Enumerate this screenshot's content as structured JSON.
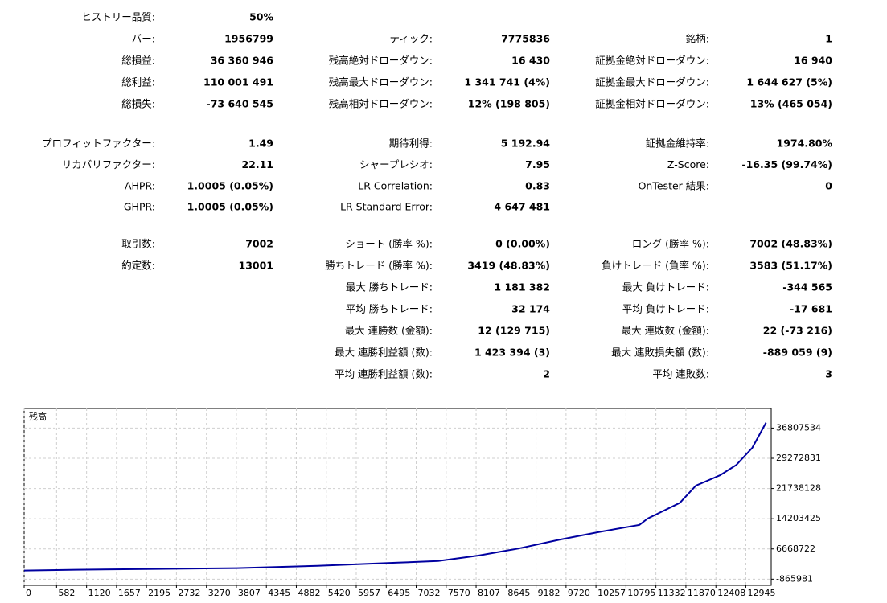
{
  "report": {
    "sections": [
      {
        "rows": [
          [
            [
              "ヒストリー品質:",
              "50%"
            ],
            null,
            null
          ],
          [
            [
              "バー:",
              "1956799"
            ],
            [
              "ティック:",
              "7775836"
            ],
            [
              "銘柄:",
              "1"
            ]
          ],
          [
            [
              "総損益:",
              "36 360 946"
            ],
            [
              "残高絶対ドローダウン:",
              "16 430"
            ],
            [
              "証拠金絶対ドローダウン:",
              "16 940"
            ]
          ],
          [
            [
              "総利益:",
              "110 001 491"
            ],
            [
              "残高最大ドローダウン:",
              "1 341 741 (4%)"
            ],
            [
              "証拠金最大ドローダウン:",
              "1 644 627 (5%)"
            ]
          ],
          [
            [
              "総損失:",
              "-73 640 545"
            ],
            [
              "残高相対ドローダウン:",
              "12% (198 805)"
            ],
            [
              "証拠金相対ドローダウン:",
              "13% (465 054)"
            ]
          ]
        ]
      },
      {
        "rows": [
          [
            [
              "プロフィットファクター:",
              "1.49"
            ],
            [
              "期待利得:",
              "5 192.94"
            ],
            [
              "証拠金維持率:",
              "1974.80%"
            ]
          ],
          [
            [
              "リカバリファクター:",
              "22.11"
            ],
            [
              "シャープレシオ:",
              "7.95"
            ],
            [
              "Z-Score:",
              "-16.35 (99.74%)"
            ]
          ],
          [
            [
              "AHPR:",
              "1.0005 (0.05%)"
            ],
            [
              "LR Correlation:",
              "0.83"
            ],
            [
              "OnTester 結果:",
              "0"
            ]
          ],
          [
            [
              "GHPR:",
              "1.0005 (0.05%)"
            ],
            [
              "LR Standard Error:",
              "4 647 481"
            ],
            null
          ]
        ]
      },
      {
        "rows": [
          [
            [
              "取引数:",
              "7002"
            ],
            [
              "ショート (勝率 %):",
              "0 (0.00%)"
            ],
            [
              "ロング (勝率 %):",
              "7002 (48.83%)"
            ]
          ],
          [
            [
              "約定数:",
              "13001"
            ],
            [
              "勝ちトレード (勝率 %):",
              "3419 (48.83%)"
            ],
            [
              "負けトレード (負率 %):",
              "3583 (51.17%)"
            ]
          ],
          [
            null,
            [
              "最大 勝ちトレード:",
              "1 181 382"
            ],
            [
              "最大 負けトレード:",
              "-344 565"
            ]
          ],
          [
            null,
            [
              "平均 勝ちトレード:",
              "32 174"
            ],
            [
              "平均 負けトレード:",
              "-17 681"
            ]
          ],
          [
            null,
            [
              "最大 連勝数 (金額):",
              "12 (129 715)"
            ],
            [
              "最大 連敗数 (金額):",
              "22 (-73 216)"
            ]
          ],
          [
            null,
            [
              "最大 連勝利益額 (数):",
              "1 423 394 (3)"
            ],
            [
              "最大 連敗損失額 (数):",
              "-889 059 (9)"
            ]
          ],
          [
            null,
            [
              "平均 連勝利益額 (数):",
              "2"
            ],
            [
              "平均 連敗数:",
              "3"
            ]
          ]
        ]
      }
    ]
  },
  "chart_data": {
    "type": "line",
    "title": "残高",
    "x": [
      0,
      925,
      2369,
      3814,
      5259,
      5981,
      6704,
      7426,
      8149,
      8871,
      9594,
      10316,
      11038,
      11183,
      11761,
      12050,
      12483,
      12772,
      13061,
      13307
    ],
    "series": [
      {
        "name": "残高",
        "color": "#0000a0",
        "values": [
          1290000,
          1490000,
          1690000,
          1880000,
          2470000,
          2860000,
          3250000,
          3650000,
          5020000,
          6790000,
          8950000,
          10910000,
          12670000,
          14240000,
          18170000,
          22480000,
          25040000,
          27590000,
          31900000,
          38180000
        ]
      }
    ],
    "xlim": [
      0,
      13400
    ],
    "ylim": [
      -2400000,
      41700000
    ],
    "xticks": [
      0,
      582,
      1120,
      1657,
      2195,
      2732,
      3270,
      3807,
      4345,
      4882,
      5420,
      5957,
      6495,
      7032,
      7570,
      8107,
      8645,
      9182,
      9720,
      10257,
      10795,
      11332,
      11870,
      12408,
      12945
    ],
    "yticks": [
      -865981,
      6668722,
      14203425,
      21738128,
      29272831,
      36807534
    ],
    "grid": true
  }
}
